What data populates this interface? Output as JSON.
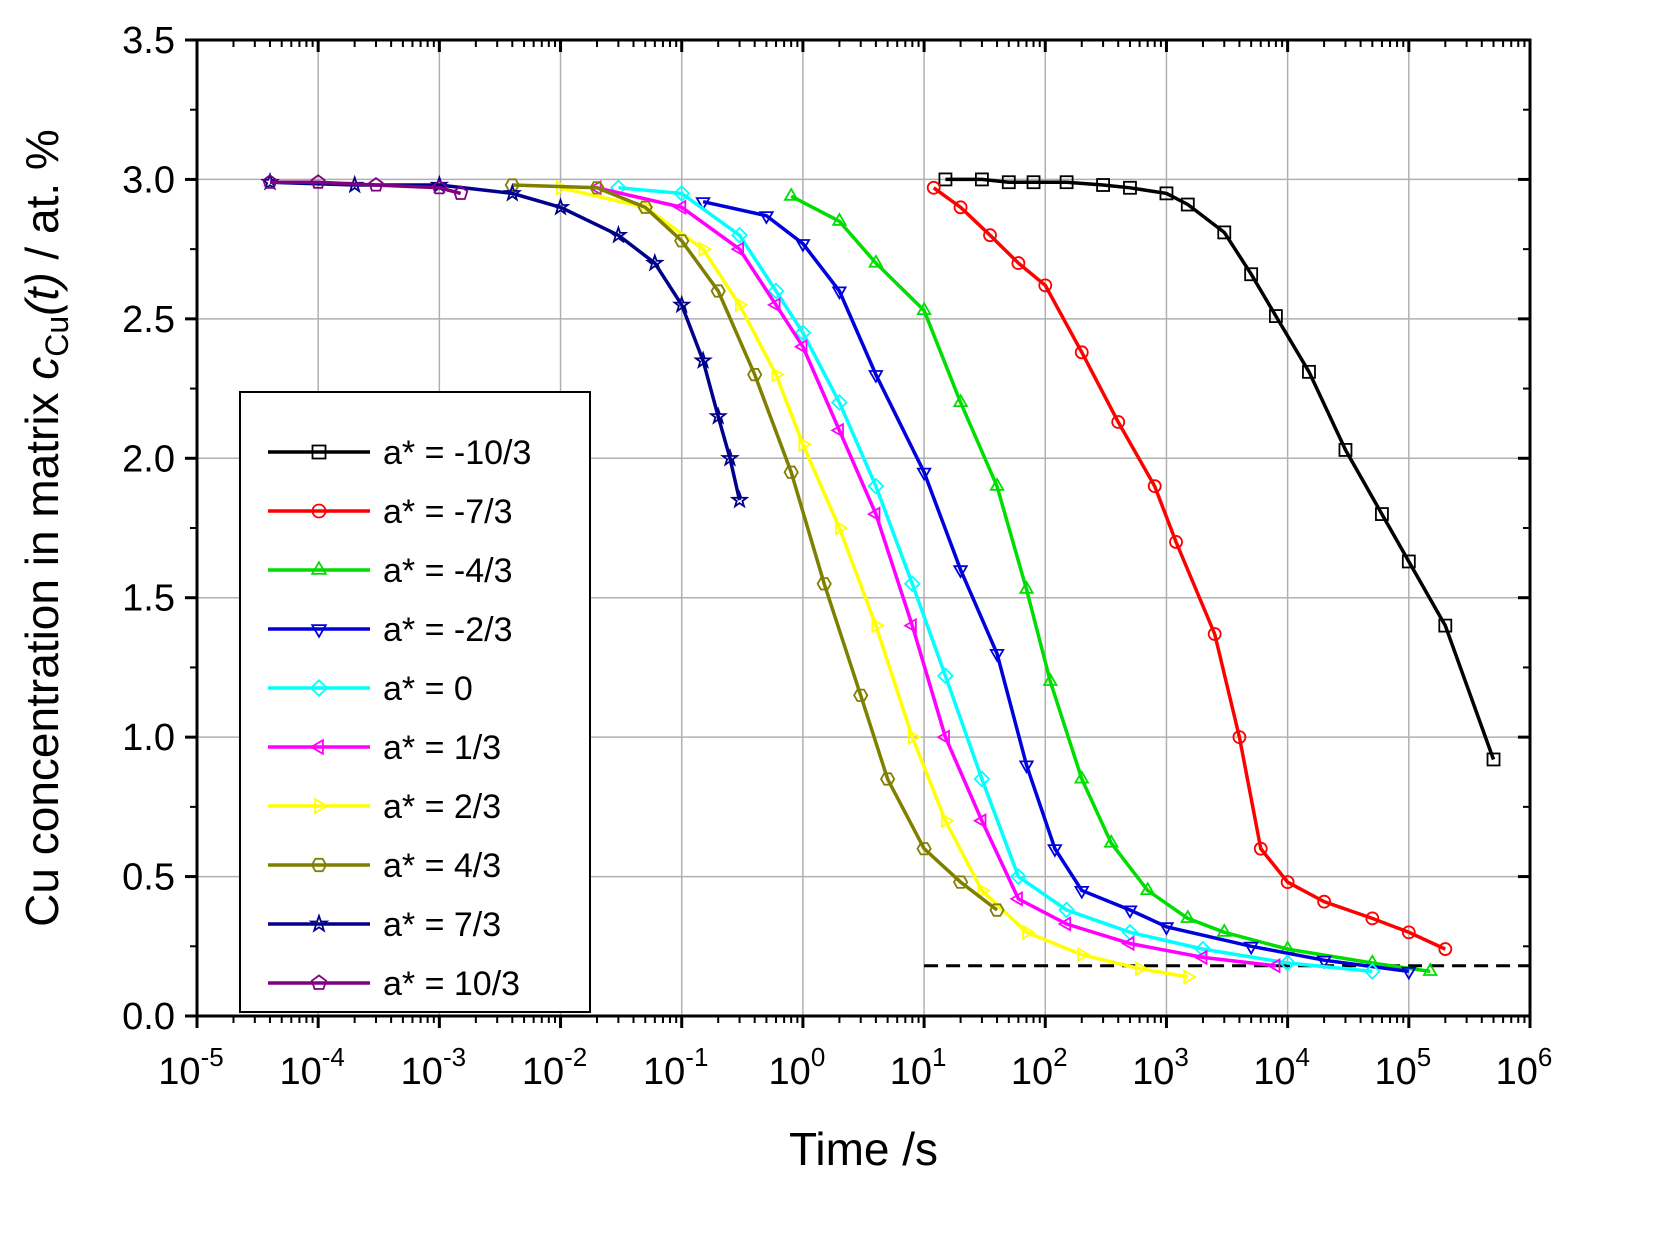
{
  "chart_data": {
    "type": "line",
    "xlabel": "Time /s",
    "ylabel_prefix": "Cu concentration in matrix ",
    "ylabel_var": "c",
    "ylabel_sub": "Cu",
    "ylabel_arg": "(t)",
    "ylabel_suffix": " / at. %",
    "x_scale": "log",
    "xlim": [
      1e-05,
      1000000
    ],
    "ylim": [
      0,
      3.5
    ],
    "grid": true,
    "legend_position": "left",
    "x_ticks": [
      {
        "value": 1e-05,
        "base": "10",
        "exp": "-5"
      },
      {
        "value": 0.0001,
        "base": "10",
        "exp": "-4"
      },
      {
        "value": 0.001,
        "base": "10",
        "exp": "-3"
      },
      {
        "value": 0.01,
        "base": "10",
        "exp": "-2"
      },
      {
        "value": 0.1,
        "base": "10",
        "exp": "-1"
      },
      {
        "value": 1,
        "base": "10",
        "exp": "0"
      },
      {
        "value": 10,
        "base": "10",
        "exp": "1"
      },
      {
        "value": 100,
        "base": "10",
        "exp": "2"
      },
      {
        "value": 1000,
        "base": "10",
        "exp": "3"
      },
      {
        "value": 10000,
        "base": "10",
        "exp": "4"
      },
      {
        "value": 100000,
        "base": "10",
        "exp": "5"
      },
      {
        "value": 1000000,
        "base": "10",
        "exp": "6"
      }
    ],
    "y_ticks": [
      {
        "value": 0.0,
        "label": "0.0"
      },
      {
        "value": 0.5,
        "label": "0.5"
      },
      {
        "value": 1.0,
        "label": "1.0"
      },
      {
        "value": 1.5,
        "label": "1.5"
      },
      {
        "value": 2.0,
        "label": "2.0"
      },
      {
        "value": 2.5,
        "label": "2.5"
      },
      {
        "value": 3.0,
        "label": "3.0"
      },
      {
        "value": 3.5,
        "label": "3.5"
      }
    ],
    "reference_line": {
      "y": 0.18,
      "x_from": 10,
      "x_to": 1000000,
      "style": "dashed",
      "color": "#000000"
    },
    "series": [
      {
        "name": "a* = -10/3",
        "color": "#000000",
        "marker": "square",
        "x": [
          15,
          30,
          50,
          80,
          150,
          300,
          500,
          1000,
          1500,
          3000,
          5000,
          8000,
          15000,
          30000,
          60000,
          100000,
          200000,
          500000
        ],
        "y": [
          3.0,
          3.0,
          2.99,
          2.99,
          2.99,
          2.98,
          2.97,
          2.95,
          2.91,
          2.81,
          2.66,
          2.51,
          2.31,
          2.03,
          1.8,
          1.63,
          1.4,
          0.92
        ]
      },
      {
        "name": "a* = -7/3",
        "color": "#ff0000",
        "marker": "circle",
        "x": [
          12,
          20,
          35,
          60,
          100,
          200,
          400,
          800,
          1200,
          2500,
          4000,
          6000,
          10000,
          20000,
          50000,
          100000,
          200000
        ],
        "y": [
          2.97,
          2.9,
          2.8,
          2.7,
          2.62,
          2.38,
          2.13,
          1.9,
          1.7,
          1.37,
          1.0,
          0.6,
          0.48,
          0.41,
          0.35,
          0.3,
          0.24
        ]
      },
      {
        "name": "a* = -4/3",
        "color": "#00dd00",
        "marker": "triangle-up",
        "x": [
          0.8,
          2,
          4,
          10,
          20,
          40,
          70,
          110,
          200,
          350,
          700,
          1500,
          3000,
          10000,
          50000,
          150000
        ],
        "y": [
          2.94,
          2.85,
          2.7,
          2.53,
          2.2,
          1.9,
          1.53,
          1.2,
          0.85,
          0.62,
          0.45,
          0.35,
          0.3,
          0.24,
          0.19,
          0.16
        ]
      },
      {
        "name": "a* = -2/3",
        "color": "#0000dd",
        "marker": "triangle-down",
        "x": [
          0.15,
          0.5,
          1,
          2,
          4,
          10,
          20,
          40,
          70,
          120,
          200,
          500,
          1000,
          5000,
          20000,
          100000
        ],
        "y": [
          2.92,
          2.87,
          2.77,
          2.6,
          2.3,
          1.95,
          1.6,
          1.3,
          0.9,
          0.6,
          0.45,
          0.38,
          0.32,
          0.25,
          0.2,
          0.16
        ]
      },
      {
        "name": "a* = 0",
        "color": "#00ffff",
        "marker": "diamond",
        "x": [
          0.03,
          0.1,
          0.3,
          0.6,
          1,
          2,
          4,
          8,
          15,
          30,
          60,
          150,
          500,
          2000,
          10000,
          50000
        ],
        "y": [
          2.97,
          2.95,
          2.8,
          2.6,
          2.45,
          2.2,
          1.9,
          1.55,
          1.22,
          0.85,
          0.5,
          0.38,
          0.3,
          0.24,
          0.19,
          0.16
        ]
      },
      {
        "name": "a* = 1/3",
        "color": "#ff00ff",
        "marker": "triangle-left",
        "x": [
          0.02,
          0.1,
          0.3,
          0.6,
          1,
          2,
          4,
          8,
          15,
          30,
          60,
          150,
          500,
          2000,
          8000
        ],
        "y": [
          2.97,
          2.9,
          2.75,
          2.55,
          2.4,
          2.1,
          1.8,
          1.4,
          1.0,
          0.7,
          0.42,
          0.33,
          0.26,
          0.21,
          0.18
        ]
      },
      {
        "name": "a* = 2/3",
        "color": "#ffff00",
        "marker": "triangle-right",
        "x": [
          0.01,
          0.05,
          0.15,
          0.3,
          0.6,
          1,
          2,
          4,
          8,
          15,
          30,
          70,
          200,
          600,
          1500
        ],
        "y": [
          2.97,
          2.9,
          2.75,
          2.55,
          2.3,
          2.05,
          1.75,
          1.4,
          1.0,
          0.7,
          0.45,
          0.3,
          0.22,
          0.17,
          0.14
        ]
      },
      {
        "name": "a* = 4/3",
        "color": "#808000",
        "marker": "hexagon",
        "x": [
          0.004,
          0.02,
          0.05,
          0.1,
          0.2,
          0.4,
          0.8,
          1.5,
          3,
          5,
          10,
          20,
          40
        ],
        "y": [
          2.98,
          2.97,
          2.9,
          2.78,
          2.6,
          2.3,
          1.95,
          1.55,
          1.15,
          0.85,
          0.6,
          0.48,
          0.38
        ]
      },
      {
        "name": "a* = 7/3",
        "color": "#00008b",
        "marker": "star",
        "x": [
          4e-05,
          0.0002,
          0.001,
          0.004,
          0.01,
          0.03,
          0.06,
          0.1,
          0.15,
          0.2,
          0.25,
          0.3
        ],
        "y": [
          2.99,
          2.98,
          2.98,
          2.95,
          2.9,
          2.8,
          2.7,
          2.55,
          2.35,
          2.15,
          2.0,
          1.85
        ]
      },
      {
        "name": "a* = 10/3",
        "color": "#800080",
        "marker": "pentagon",
        "x": [
          4e-05,
          0.0001,
          0.0003,
          0.001,
          0.0015
        ],
        "y": [
          2.99,
          2.99,
          2.98,
          2.97,
          2.95
        ]
      }
    ]
  }
}
